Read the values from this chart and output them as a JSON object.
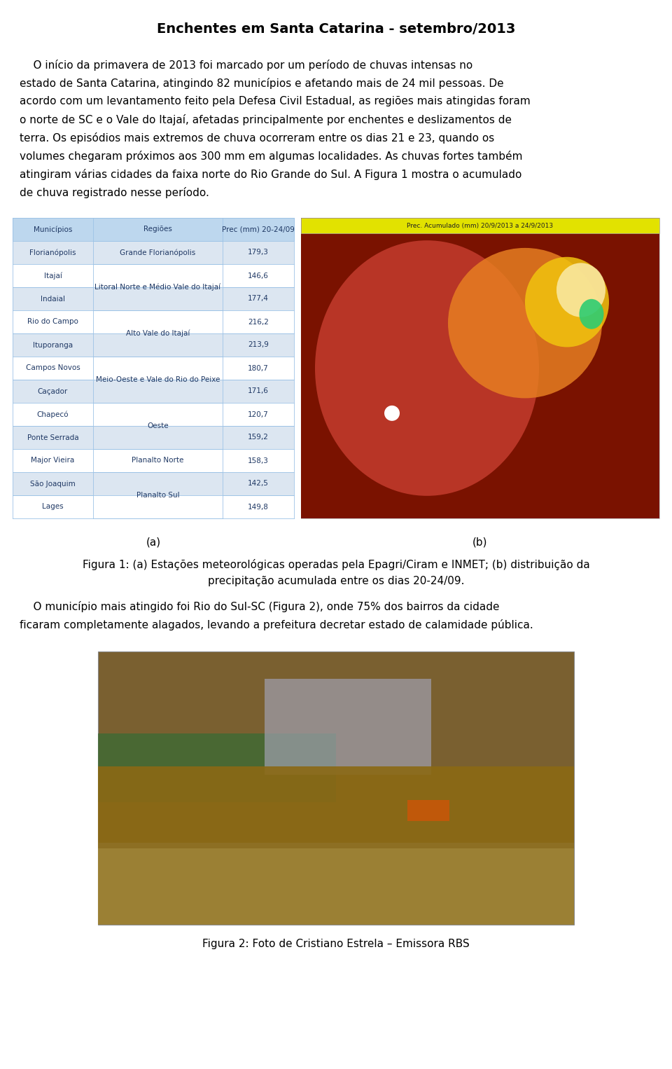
{
  "title": "Enchentes em Santa Catarina - setembro/2013",
  "paragraph1_lines": [
    "    O início da primavera de 2013 foi marcado por um período de chuvas intensas no",
    "estado de Santa Catarina, atingindo 82 municípios e afetando mais de 24 mil pessoas. De",
    "acordo com um levantamento feito pela Defesa Civil Estadual, as regiões mais atingidas foram",
    "o norte de SC e o Vale do Itajaí, afetadas principalmente por enchentes e deslizamentos de",
    "terra. Os episódios mais extremos de chuva ocorreram entre os dias 21 e 23, quando os",
    "volumes chegaram próximos aos 300 mm em algumas localidades. As chuvas fortes também",
    "atingiram várias cidades da faixa norte do Rio Grande do Sul. A Figura 1 mostra o acumulado",
    "de chuva registrado nesse período."
  ],
  "table_headers": [
    "Municípios",
    "Regiões",
    "Prec (mm) 20-24/09"
  ],
  "municipalities": [
    "Florianópolis",
    "Itajaí",
    "Indaial",
    "Rio do Campo",
    "Ituporanga",
    "Campos Novos",
    "Caçador",
    "Chapecó",
    "Ponte Serrada",
    "Major Vieira",
    "São Joaquim",
    "Lages"
  ],
  "prec_values": [
    "179,3",
    "146,6",
    "177,4",
    "216,2",
    "213,9",
    "180,7",
    "171,6",
    "120,7",
    "159,2",
    "158,3",
    "142,5",
    "149,8"
  ],
  "region_spans": [
    [
      0,
      0,
      "Grande Florianópolis"
    ],
    [
      1,
      2,
      "Litoral Norte e Médio Vale do Itajaí"
    ],
    [
      3,
      4,
      "Alto Vale do Itajaí"
    ],
    [
      5,
      6,
      "Meio-Oeste e Vale do Rio do Peixe"
    ],
    [
      7,
      8,
      "Oeste"
    ],
    [
      9,
      9,
      "Planalto Norte"
    ],
    [
      10,
      11,
      "Planalto Sul"
    ]
  ],
  "caption_a": "(a)",
  "caption_b": "(b)",
  "figura1_caption_line1": "Figura 1: (a) Estações meteorológicas operadas pela Epagri/Ciram e INMET; (b) distribuição da",
  "figura1_caption_line2": "precipitação acumulada entre os dias 20-24/09.",
  "paragraph2_lines": [
    "    O município mais atingido foi Rio do Sul-SC (Figura 2), onde 75% dos bairros da cidade",
    "ficaram completamente alagados, levando a prefeitura decretar estado de calamidade pública."
  ],
  "figura2_caption": "Figura 2: Foto de Cristiano Estrela – Emissora RBS",
  "bg_color": "#ffffff",
  "text_color": "#000000",
  "table_text_color": "#1f3864",
  "table_header_bg": "#bdd7ee",
  "table_row_odd_bg": "#dce6f1",
  "table_row_even_bg": "#ffffff",
  "table_border_color": "#9dc3e6",
  "map_title_bg": "#e2e200",
  "map_bg": "#8b1a00"
}
